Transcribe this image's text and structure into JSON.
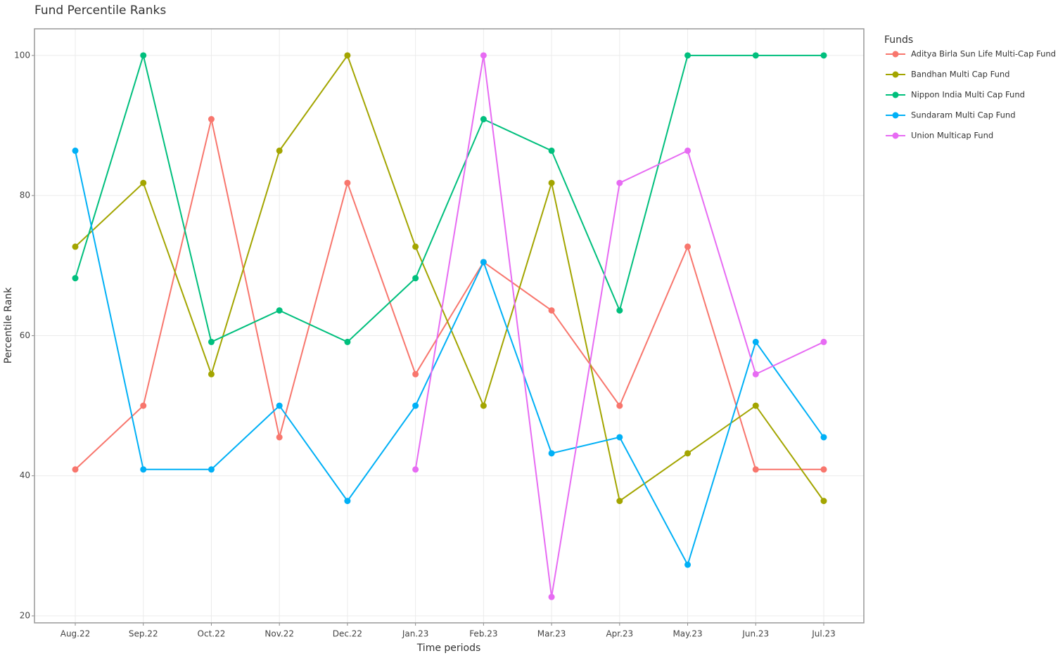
{
  "chart_data": {
    "type": "line",
    "title": "Fund Percentile Ranks",
    "x_label": "Time periods",
    "y_label": "Percentile Rank",
    "legend_title": "Funds",
    "categories": [
      "Aug.22",
      "Sep.22",
      "Oct.22",
      "Nov.22",
      "Dec.22",
      "Jan.23",
      "Feb.23",
      "Mar.23",
      "Apr.23",
      "May.23",
      "Jun.23",
      "Jul.23"
    ],
    "series": [
      {
        "name": "Aditya Birla Sun Life Multi-Cap Fund",
        "color": "#f8766d",
        "values": [
          40.9,
          50,
          90.9,
          45.5,
          81.8,
          54.5,
          70.5,
          63.6,
          50,
          72.7,
          40.9,
          40.9
        ]
      },
      {
        "name": "Bandhan Multi Cap Fund",
        "color": "#a3a500",
        "values": [
          72.7,
          81.8,
          54.5,
          86.4,
          100,
          72.7,
          50,
          81.8,
          36.4,
          43.2,
          50,
          36.4
        ]
      },
      {
        "name": "Nippon India Multi Cap Fund",
        "color": "#00bf7d",
        "values": [
          68.2,
          100,
          59.1,
          63.6,
          59.1,
          68.2,
          90.9,
          86.4,
          63.6,
          100,
          100,
          100
        ]
      },
      {
        "name": "Sundaram Multi Cap Fund",
        "color": "#00b0f6",
        "values": [
          86.4,
          40.9,
          40.9,
          50,
          36.4,
          50,
          70.5,
          43.2,
          45.5,
          27.3,
          59.1,
          45.5
        ]
      },
      {
        "name": "Union Multicap Fund",
        "color": "#e76bf3",
        "values": [
          null,
          null,
          null,
          null,
          null,
          40.9,
          100,
          22.7,
          81.8,
          86.4,
          54.5,
          59.1
        ]
      }
    ],
    "ylim": [
      19,
      103.8
    ],
    "yticks": [
      20,
      40,
      60,
      80,
      100
    ],
    "grid": true,
    "legend": "right"
  }
}
